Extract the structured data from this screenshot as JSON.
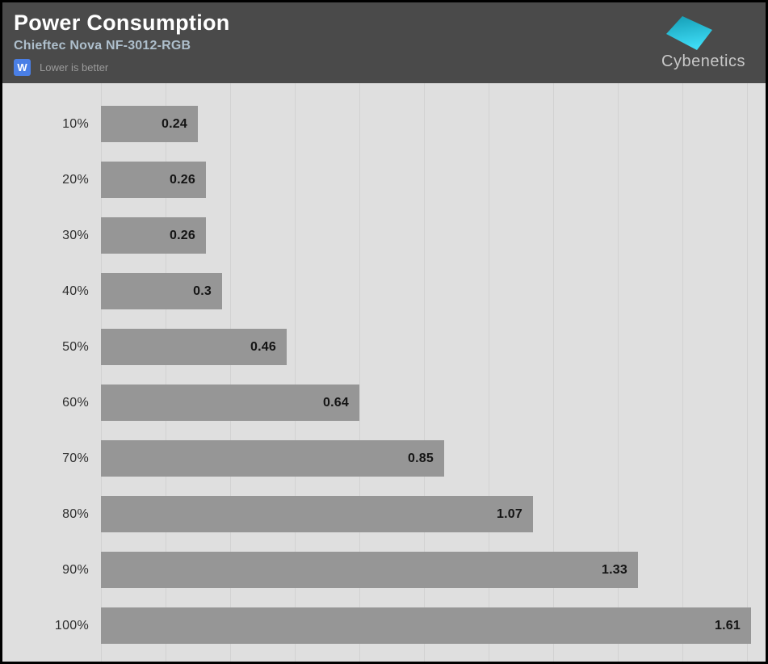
{
  "header": {
    "title": "Power Consumption",
    "subtitle": "Chieftec Nova NF-3012-RGB",
    "unit_badge": "W",
    "note": "Lower is better",
    "brand": "Cybenetics"
  },
  "colors": {
    "header_bg": "#4a4a4a",
    "subtitle_text": "#aebfcc",
    "badge_bg": "#4a7fe6",
    "note_text": "#9b9b9b",
    "chart_bg": "#dfdfdf",
    "gridline": "#d2d2d2",
    "bar": "#969696",
    "value_text": "#141414",
    "category_text": "#2e2e2e",
    "logo_cyan_top": "#149cb4",
    "logo_cyan_bottom": "#3edcf6",
    "brand_text": "#c8c8c8"
  },
  "chart_data": {
    "type": "bar",
    "orientation": "horizontal",
    "title": "Power Consumption",
    "subtitle": "Chieftec Nova NF-3012-RGB",
    "unit": "W",
    "note": "Lower is better",
    "categories": [
      "10%",
      "20%",
      "30%",
      "40%",
      "50%",
      "60%",
      "70%",
      "80%",
      "90%",
      "100%"
    ],
    "values": [
      0.24,
      0.26,
      0.26,
      0.3,
      0.46,
      0.64,
      0.85,
      1.07,
      1.33,
      1.61
    ],
    "value_labels": [
      "0.24",
      "0.26",
      "0.26",
      "0.3",
      "0.46",
      "0.64",
      "0.85",
      "1.07",
      "1.33",
      "1.61"
    ],
    "xlim": [
      0,
      1.64
    ],
    "grid": true,
    "legend": false,
    "value_label_position": "inside-end"
  }
}
